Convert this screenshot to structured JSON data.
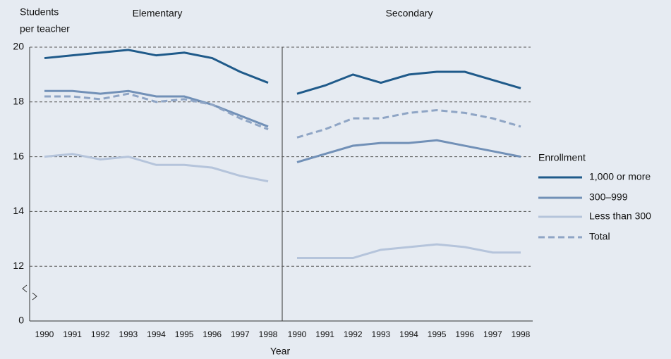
{
  "chart_data": [
    {
      "type": "line",
      "title": "Elementary",
      "y_label_lines": [
        "Students",
        "per teacher"
      ],
      "x_label": "Year",
      "legend_title": "Enrollment",
      "ylim": [
        0,
        20
      ],
      "y_break": [
        0,
        10
      ],
      "yticks": [
        0,
        12,
        14,
        16,
        18,
        20
      ],
      "grid": true,
      "categories": [
        "1990",
        "1991",
        "1992",
        "1993",
        "1994",
        "1995",
        "1996",
        "1997",
        "1998"
      ],
      "series": [
        {
          "name": "1,000 or more",
          "color": "#1f5a8a",
          "dash": false,
          "values": [
            19.6,
            19.7,
            19.8,
            19.9,
            19.7,
            19.8,
            19.6,
            19.1,
            18.7
          ]
        },
        {
          "name": "300–999",
          "color": "#7190b7",
          "dash": false,
          "values": [
            18.4,
            18.4,
            18.3,
            18.4,
            18.2,
            18.2,
            17.9,
            17.5,
            17.1
          ]
        },
        {
          "name": "Less than 300",
          "color": "#b5c4db",
          "dash": false,
          "values": [
            16.0,
            16.1,
            15.9,
            16.0,
            15.7,
            15.7,
            15.6,
            15.3,
            15.1
          ]
        },
        {
          "name": "Total",
          "color": "#8fa5c5",
          "dash": true,
          "values": [
            18.2,
            18.2,
            18.1,
            18.3,
            18.0,
            18.1,
            17.9,
            17.4,
            17.0
          ]
        }
      ]
    },
    {
      "type": "line",
      "title": "Secondary",
      "ylim": [
        0,
        20
      ],
      "y_break": [
        0,
        10
      ],
      "categories": [
        "1990",
        "1991",
        "1992",
        "1993",
        "1994",
        "1995",
        "1996",
        "1997",
        "1998"
      ],
      "series": [
        {
          "color": "#1f5a8a",
          "dash": false,
          "values": [
            18.3,
            18.6,
            19.0,
            18.7,
            19.0,
            19.1,
            19.1,
            18.8,
            18.5
          ]
        },
        {
          "color": "#7190b7",
          "dash": false,
          "values": [
            15.8,
            16.1,
            16.4,
            16.5,
            16.5,
            16.6,
            16.4,
            16.2,
            16.0
          ]
        },
        {
          "color": "#b5c4db",
          "dash": false,
          "values": [
            12.3,
            12.3,
            12.3,
            12.6,
            12.7,
            12.8,
            12.7,
            12.5,
            12.5
          ]
        },
        {
          "color": "#8fa5c5",
          "dash": true,
          "values": [
            16.7,
            17.0,
            17.4,
            17.4,
            17.6,
            17.7,
            17.6,
            17.4,
            17.1
          ]
        }
      ]
    }
  ]
}
